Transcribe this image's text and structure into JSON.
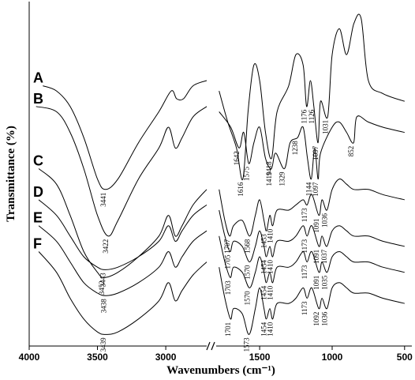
{
  "chart_data": {
    "type": "line",
    "xlabel": "Wavenumbers (cm⁻¹)",
    "ylabel": "Transmittance (%)",
    "x_axis_break": [
      2700,
      1800
    ],
    "x_ticks": [
      {
        "value": 4000,
        "label": "4000"
      },
      {
        "value": 3500,
        "label": "3500"
      },
      {
        "value": 3000,
        "label": "3000"
      },
      {
        "value": 1500,
        "label": "1500"
      },
      {
        "value": 1000,
        "label": "1000"
      },
      {
        "value": 500,
        "label": "500"
      }
    ],
    "xlim": [
      4000,
      450
    ],
    "series": [
      {
        "name": "A",
        "left": [
          [
            3900,
            0.98
          ],
          [
            3800,
            0.96
          ],
          [
            3700,
            0.9
          ],
          [
            3600,
            0.78
          ],
          [
            3500,
            0.62
          ],
          [
            3441,
            0.58
          ],
          [
            3350,
            0.62
          ],
          [
            3200,
            0.76
          ],
          [
            3050,
            0.88
          ],
          [
            2960,
            0.96
          ],
          [
            2920,
            0.93
          ],
          [
            2870,
            0.93
          ],
          [
            2800,
            0.98
          ],
          [
            2700,
            1.0
          ]
        ],
        "right": [
          [
            1780,
            0.96
          ],
          [
            1720,
            0.84
          ],
          [
            1660,
            0.74
          ],
          [
            1616,
            0.62
          ],
          [
            1580,
            0.88
          ],
          [
            1540,
            1.06
          ],
          [
            1500,
            1.0
          ],
          [
            1460,
            0.8
          ],
          [
            1418,
            0.7
          ],
          [
            1380,
            0.88
          ],
          [
            1300,
            0.98
          ],
          [
            1250,
            1.1
          ],
          [
            1200,
            1.06
          ],
          [
            1176,
            0.9
          ],
          [
            1150,
            1.0
          ],
          [
            1126,
            0.9
          ],
          [
            1097,
            0.76
          ],
          [
            1080,
            0.92
          ],
          [
            1031,
            0.86
          ],
          [
            1000,
            1.1
          ],
          [
            950,
            1.2
          ],
          [
            900,
            1.1
          ],
          [
            850,
            1.22
          ],
          [
            800,
            1.24
          ],
          [
            750,
            1.0
          ],
          [
            650,
            0.95
          ],
          [
            500,
            0.92
          ]
        ],
        "peaks": [
          3441,
          1616,
          1418,
          1176,
          1126,
          1097,
          1031
        ]
      },
      {
        "name": "B",
        "left": [
          [
            3950,
            0.9
          ],
          [
            3800,
            0.88
          ],
          [
            3700,
            0.8
          ],
          [
            3600,
            0.66
          ],
          [
            3500,
            0.48
          ],
          [
            3422,
            0.4
          ],
          [
            3350,
            0.46
          ],
          [
            3200,
            0.62
          ],
          [
            3050,
            0.74
          ],
          [
            2980,
            0.82
          ],
          [
            2930,
            0.74
          ],
          [
            2880,
            0.78
          ],
          [
            2800,
            0.86
          ],
          [
            2700,
            0.9
          ]
        ],
        "right": [
          [
            1780,
            0.88
          ],
          [
            1700,
            0.82
          ],
          [
            1642,
            0.74
          ],
          [
            1610,
            0.8
          ],
          [
            1575,
            0.68
          ],
          [
            1540,
            0.76
          ],
          [
            1500,
            0.82
          ],
          [
            1460,
            0.7
          ],
          [
            1419,
            0.66
          ],
          [
            1390,
            0.72
          ],
          [
            1329,
            0.66
          ],
          [
            1290,
            0.76
          ],
          [
            1238,
            0.78
          ],
          [
            1200,
            0.82
          ],
          [
            1170,
            0.7
          ],
          [
            1144,
            0.62
          ],
          [
            1120,
            0.74
          ],
          [
            1097,
            0.62
          ],
          [
            1080,
            0.72
          ],
          [
            1000,
            0.82
          ],
          [
            950,
            0.84
          ],
          [
            900,
            0.8
          ],
          [
            852,
            0.76
          ],
          [
            830,
            0.86
          ],
          [
            750,
            0.84
          ],
          [
            650,
            0.82
          ],
          [
            500,
            0.8
          ]
        ],
        "peaks": [
          3422,
          1642,
          1575,
          1419,
          1329,
          1238,
          1144,
          1097,
          852
        ]
      },
      {
        "name": "C",
        "left": [
          [
            3930,
            0.66
          ],
          [
            3800,
            0.6
          ],
          [
            3700,
            0.48
          ],
          [
            3600,
            0.34
          ],
          [
            3500,
            0.26
          ],
          [
            3452,
            0.24
          ],
          [
            3350,
            0.26
          ],
          [
            3200,
            0.32
          ],
          [
            3050,
            0.4
          ],
          [
            2980,
            0.48
          ],
          [
            2930,
            0.4
          ],
          [
            2880,
            0.44
          ],
          [
            2800,
            0.52
          ],
          [
            2700,
            0.58
          ]
        ],
        "right": [
          [
            1780,
            0.58
          ],
          [
            1740,
            0.46
          ],
          [
            1707,
            0.4
          ],
          [
            1680,
            0.44
          ],
          [
            1620,
            0.46
          ],
          [
            1568,
            0.4
          ],
          [
            1530,
            0.48
          ],
          [
            1500,
            0.54
          ],
          [
            1470,
            0.46
          ],
          [
            1453,
            0.42
          ],
          [
            1430,
            0.48
          ],
          [
            1410,
            0.44
          ],
          [
            1380,
            0.5
          ],
          [
            1300,
            0.5
          ],
          [
            1250,
            0.52
          ],
          [
            1200,
            0.54
          ],
          [
            1173,
            0.52
          ],
          [
            1140,
            0.56
          ],
          [
            1091,
            0.48
          ],
          [
            1070,
            0.54
          ],
          [
            1036,
            0.5
          ],
          [
            1000,
            0.58
          ],
          [
            950,
            0.62
          ],
          [
            900,
            0.6
          ],
          [
            850,
            0.58
          ],
          [
            750,
            0.58
          ],
          [
            650,
            0.56
          ],
          [
            500,
            0.54
          ]
        ],
        "peaks": [
          3452,
          1707,
          1568,
          1453,
          1410,
          1173,
          1091,
          1036
        ]
      },
      {
        "name": "D",
        "left": [
          [
            3930,
            0.54
          ],
          [
            3800,
            0.48
          ],
          [
            3700,
            0.4
          ],
          [
            3600,
            0.32
          ],
          [
            3500,
            0.28
          ],
          [
            3443,
            0.27
          ],
          [
            3350,
            0.28
          ],
          [
            3200,
            0.32
          ],
          [
            3050,
            0.38
          ],
          [
            2980,
            0.44
          ],
          [
            2930,
            0.38
          ],
          [
            2880,
            0.42
          ],
          [
            2800,
            0.48
          ],
          [
            2700,
            0.52
          ]
        ],
        "right": [
          [
            1780,
            0.5
          ],
          [
            1740,
            0.4
          ],
          [
            1705,
            0.34
          ],
          [
            1680,
            0.38
          ],
          [
            1620,
            0.36
          ],
          [
            1570,
            0.3
          ],
          [
            1530,
            0.36
          ],
          [
            1500,
            0.42
          ],
          [
            1470,
            0.36
          ],
          [
            1454,
            0.32
          ],
          [
            1430,
            0.36
          ],
          [
            1410,
            0.32
          ],
          [
            1380,
            0.38
          ],
          [
            1300,
            0.38
          ],
          [
            1250,
            0.4
          ],
          [
            1200,
            0.44
          ],
          [
            1173,
            0.4
          ],
          [
            1140,
            0.44
          ],
          [
            1091,
            0.36
          ],
          [
            1070,
            0.4
          ],
          [
            1037,
            0.36
          ],
          [
            1000,
            0.42
          ],
          [
            950,
            0.44
          ],
          [
            900,
            0.42
          ],
          [
            850,
            0.4
          ],
          [
            750,
            0.4
          ],
          [
            650,
            0.38
          ],
          [
            500,
            0.36
          ]
        ],
        "peaks": [
          3443,
          1705,
          1570,
          1454,
          1410,
          1173,
          1091,
          1037
        ]
      },
      {
        "name": "E",
        "left": [
          [
            3930,
            0.44
          ],
          [
            3800,
            0.38
          ],
          [
            3700,
            0.3
          ],
          [
            3600,
            0.22
          ],
          [
            3500,
            0.18
          ],
          [
            3438,
            0.17
          ],
          [
            3350,
            0.18
          ],
          [
            3200,
            0.22
          ],
          [
            3050,
            0.28
          ],
          [
            2980,
            0.34
          ],
          [
            2930,
            0.28
          ],
          [
            2880,
            0.32
          ],
          [
            2800,
            0.38
          ],
          [
            2700,
            0.42
          ]
        ],
        "right": [
          [
            1780,
            0.4
          ],
          [
            1740,
            0.3
          ],
          [
            1703,
            0.24
          ],
          [
            1680,
            0.28
          ],
          [
            1620,
            0.26
          ],
          [
            1570,
            0.2
          ],
          [
            1530,
            0.26
          ],
          [
            1500,
            0.32
          ],
          [
            1470,
            0.26
          ],
          [
            1454,
            0.22
          ],
          [
            1430,
            0.26
          ],
          [
            1410,
            0.22
          ],
          [
            1380,
            0.28
          ],
          [
            1300,
            0.28
          ],
          [
            1250,
            0.3
          ],
          [
            1200,
            0.34
          ],
          [
            1173,
            0.3
          ],
          [
            1140,
            0.34
          ],
          [
            1091,
            0.26
          ],
          [
            1070,
            0.3
          ],
          [
            1035,
            0.26
          ],
          [
            1000,
            0.32
          ],
          [
            950,
            0.34
          ],
          [
            900,
            0.32
          ],
          [
            850,
            0.3
          ],
          [
            750,
            0.3
          ],
          [
            650,
            0.28
          ],
          [
            500,
            0.26
          ]
        ],
        "peaks": [
          3438,
          1703,
          1570,
          1454,
          1410,
          1173,
          1091,
          1035
        ]
      },
      {
        "name": "F",
        "left": [
          [
            3930,
            0.34
          ],
          [
            3800,
            0.26
          ],
          [
            3700,
            0.16
          ],
          [
            3600,
            0.08
          ],
          [
            3500,
            0.03
          ],
          [
            3439,
            0.02
          ],
          [
            3350,
            0.03
          ],
          [
            3200,
            0.08
          ],
          [
            3050,
            0.15
          ],
          [
            2980,
            0.22
          ],
          [
            2930,
            0.15
          ],
          [
            2880,
            0.19
          ],
          [
            2800,
            0.25
          ],
          [
            2700,
            0.3
          ]
        ],
        "right": [
          [
            1780,
            0.28
          ],
          [
            1740,
            0.16
          ],
          [
            1701,
            0.08
          ],
          [
            1680,
            0.12
          ],
          [
            1620,
            0.1
          ],
          [
            1573,
            0.02
          ],
          [
            1530,
            0.12
          ],
          [
            1500,
            0.2
          ],
          [
            1470,
            0.12
          ],
          [
            1454,
            0.08
          ],
          [
            1430,
            0.12
          ],
          [
            1410,
            0.08
          ],
          [
            1380,
            0.14
          ],
          [
            1300,
            0.14
          ],
          [
            1250,
            0.16
          ],
          [
            1200,
            0.2
          ],
          [
            1173,
            0.16
          ],
          [
            1140,
            0.2
          ],
          [
            1092,
            0.12
          ],
          [
            1070,
            0.16
          ],
          [
            1036,
            0.12
          ],
          [
            1000,
            0.2
          ],
          [
            950,
            0.22
          ],
          [
            900,
            0.2
          ],
          [
            850,
            0.18
          ],
          [
            750,
            0.18
          ],
          [
            650,
            0.16
          ],
          [
            500,
            0.14
          ]
        ],
        "peaks": [
          3439,
          1701,
          1573,
          1454,
          1410,
          1173,
          1092,
          1036
        ]
      }
    ]
  }
}
